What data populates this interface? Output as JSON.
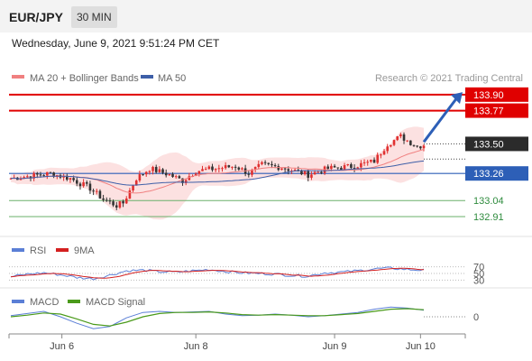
{
  "header": {
    "symbol": "EUR/JPY",
    "timeframe": "30 MIN"
  },
  "timestamp": "Wednesday, June 9, 2021 9:51:24 PM CET",
  "colors": {
    "resistance": "#e00000",
    "pivot": "#2d5fb7",
    "support": "#2e8b3d",
    "bollinger_fill": "#fbdada",
    "ma20": "#f08080",
    "ma50": "#3e5fa8",
    "up_candle": "#e03030",
    "down_candle": "#333333",
    "rsi": "#5b7fd6",
    "rsi_ma": "#d42020",
    "macd": "#5b7fd6",
    "macd_signal": "#4a9a1a"
  },
  "chart_data": {
    "type": "candlestick",
    "title": "",
    "watermark": "Research © 2021 Trading Central",
    "legend": [
      {
        "label": "MA 20 + Bollinger Bands",
        "color": "#f08080"
      },
      {
        "label": "MA 50",
        "color": "#3e5fa8"
      }
    ],
    "x_ticks": [
      "Jun 6",
      "Jun 8",
      "Jun 9",
      "Jun 10"
    ],
    "y_range": [
      132.8,
      133.95
    ],
    "levels": [
      {
        "label": "133.90",
        "value": 133.9,
        "kind": "resistance"
      },
      {
        "label": "133.77",
        "value": 133.77,
        "kind": "resistance"
      },
      {
        "label": "133.50",
        "value": 133.5,
        "kind": "last"
      },
      {
        "label": "133.26",
        "value": 133.26,
        "kind": "pivot"
      },
      {
        "label": "133.04",
        "value": 133.04,
        "kind": "support"
      },
      {
        "label": "132.91",
        "value": 132.91,
        "kind": "support"
      }
    ],
    "anchors": [
      [
        0,
        133.22
      ],
      [
        6,
        133.24
      ],
      [
        12,
        133.26
      ],
      [
        18,
        133.22
      ],
      [
        24,
        133.14
      ],
      [
        28,
        133.05
      ],
      [
        32,
        133.0
      ],
      [
        34,
        133.02
      ],
      [
        38,
        133.22
      ],
      [
        42,
        133.3
      ],
      [
        48,
        133.25
      ],
      [
        52,
        133.2
      ],
      [
        56,
        133.28
      ],
      [
        62,
        133.3
      ],
      [
        68,
        133.32
      ],
      [
        72,
        133.26
      ],
      [
        76,
        133.33
      ],
      [
        82,
        133.31
      ],
      [
        90,
        133.25
      ],
      [
        96,
        133.3
      ],
      [
        104,
        133.32
      ],
      [
        110,
        133.36
      ],
      [
        114,
        133.5
      ],
      [
        118,
        133.56
      ],
      [
        123,
        133.48
      ],
      [
        126,
        133.5
      ]
    ],
    "rsi": {
      "legend": [
        {
          "label": "RSI",
          "color": "#5b7fd6"
        },
        {
          "label": "9MA",
          "color": "#d42020"
        }
      ],
      "ticks": [
        "70",
        "50",
        "30"
      ],
      "values": [
        40,
        48,
        52,
        46,
        38,
        34,
        45,
        58,
        60,
        55,
        54,
        58,
        62,
        56,
        52,
        50,
        48,
        44,
        42,
        52,
        54,
        58,
        64,
        66,
        62,
        60
      ]
    },
    "macd": {
      "legend": [
        {
          "label": "MACD",
          "color": "#5b7fd6"
        },
        {
          "label": "MACD Signal",
          "color": "#4a9a1a"
        }
      ],
      "ticks": [
        "0"
      ],
      "values": [
        0.02,
        0.06,
        0.1,
        0.0,
        -0.12,
        -0.22,
        -0.18,
        -0.02,
        0.08,
        0.1,
        0.08,
        0.09,
        0.1,
        0.05,
        0.02,
        0.03,
        0.05,
        0.03,
        0.0,
        0.02,
        0.05,
        0.08,
        0.14,
        0.18,
        0.16,
        0.12
      ],
      "signal": [
        0.0,
        0.03,
        0.07,
        0.05,
        -0.04,
        -0.14,
        -0.17,
        -0.1,
        0.0,
        0.06,
        0.08,
        0.08,
        0.09,
        0.07,
        0.04,
        0.03,
        0.04,
        0.03,
        0.02,
        0.02,
        0.04,
        0.06,
        0.1,
        0.14,
        0.15,
        0.13
      ]
    }
  }
}
